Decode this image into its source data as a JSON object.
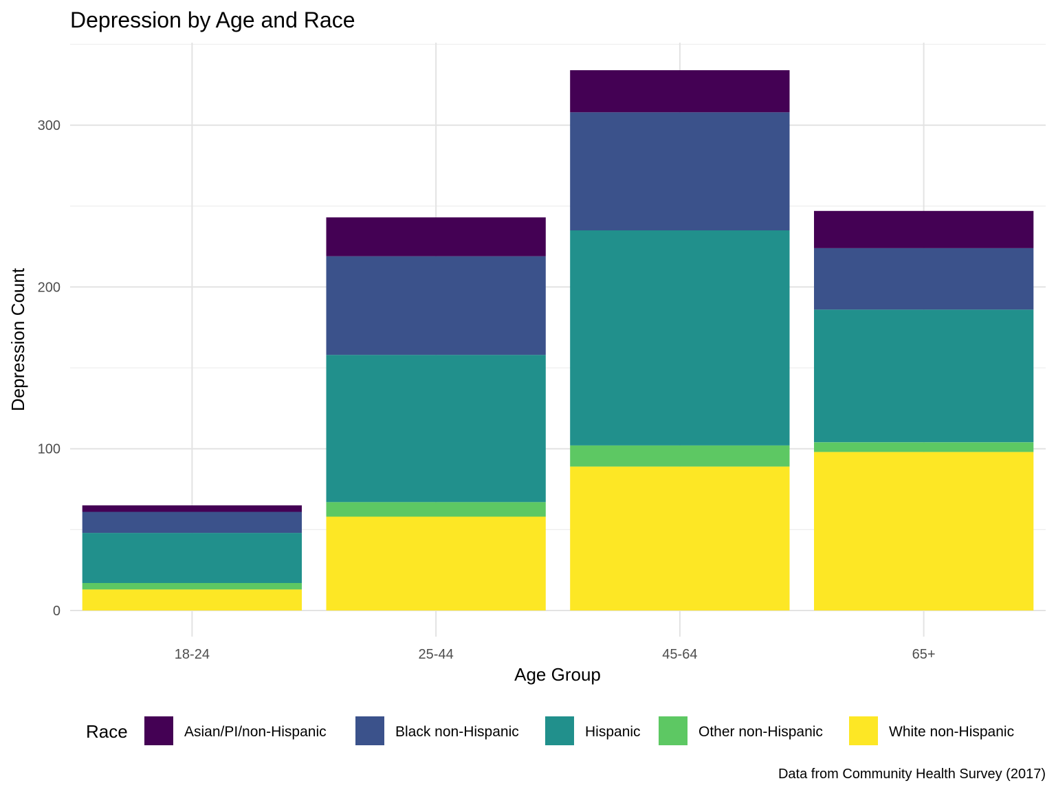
{
  "chart_data": {
    "type": "bar",
    "stacked": true,
    "title": "Depression by Age and Race",
    "xlabel": "Age Group",
    "ylabel": "Depression Count",
    "caption": "Data from Community Health Survey (2017)",
    "categories": [
      "18-24",
      "25-44",
      "45-64",
      "65+"
    ],
    "ylim": [
      0,
      350
    ],
    "yticks": [
      0,
      100,
      200,
      300
    ],
    "legend_title": "Race",
    "legend_position": "bottom",
    "grid": true,
    "series": [
      {
        "name": "White non-Hispanic",
        "color": "#FDE725",
        "values": [
          13,
          58,
          89,
          98
        ]
      },
      {
        "name": "Other non-Hispanic",
        "color": "#5DC863",
        "values": [
          4,
          9,
          13,
          6
        ]
      },
      {
        "name": "Hispanic",
        "color": "#21908C",
        "values": [
          31,
          91,
          133,
          82
        ]
      },
      {
        "name": "Black non-Hispanic",
        "color": "#3B528B",
        "values": [
          13,
          61,
          73,
          38
        ]
      },
      {
        "name": "Asian/PI/non-Hispanic",
        "color": "#440154",
        "values": [
          4,
          24,
          26,
          23
        ]
      }
    ],
    "legend_order": [
      "Asian/PI/non-Hispanic",
      "Black non-Hispanic",
      "Hispanic",
      "Other non-Hispanic",
      "White non-Hispanic"
    ]
  }
}
